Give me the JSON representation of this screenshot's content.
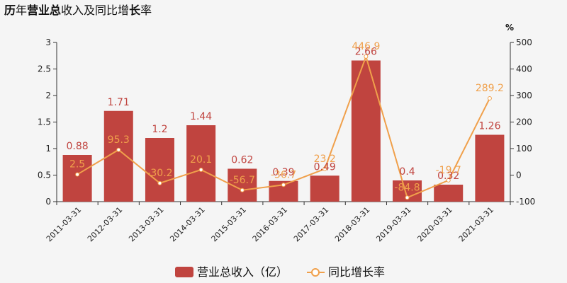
{
  "chart_data": {
    "type": "bar",
    "title": "历年营业总收入及同比增长率",
    "title_emphasis": [
      "营业总",
      "长"
    ],
    "categories": [
      "2011-03-31",
      "2012-03-31",
      "2013-03-31",
      "2014-03-31",
      "2015-03-31",
      "2016-03-31",
      "2017-03-31",
      "2018-03-31",
      "2019-03-31",
      "2020-03-31",
      "2021-03-31"
    ],
    "series": [
      {
        "name": "营业总收入（亿）",
        "type": "bar",
        "axis": "left",
        "color": "#c0443f",
        "values": [
          0.88,
          1.71,
          1.2,
          1.44,
          0.62,
          0.39,
          0.49,
          2.66,
          0.4,
          0.32,
          1.26
        ]
      },
      {
        "name": "同比增长率",
        "type": "line",
        "axis": "right",
        "color": "#f0a04b",
        "values": [
          2.5,
          95.3,
          -30.2,
          20.1,
          -56.7,
          -36.7,
          23.2,
          446.9,
          -84.8,
          -19.7,
          289.2
        ]
      }
    ],
    "left_axis": {
      "min": 0,
      "max": 3,
      "ticks": [
        0,
        0.5,
        1,
        1.5,
        2,
        2.5,
        3
      ]
    },
    "right_axis": {
      "min": -100,
      "max": 500,
      "ticks": [
        -100,
        0,
        100,
        200,
        300,
        400,
        500
      ],
      "unit": "%"
    },
    "grid": false,
    "legend_position": "bottom"
  }
}
